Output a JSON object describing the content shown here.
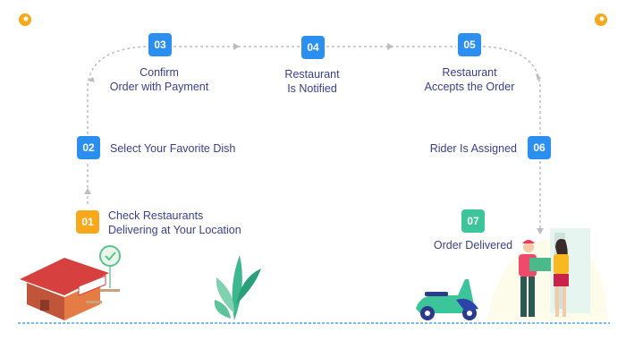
{
  "colors": {
    "step_badge": "#2b8ff0",
    "start_badge": "#f7a81b",
    "end_badge": "#3cc49a",
    "text": "#3a3f8f",
    "path": "#bdbdbd",
    "ground": "#4aa3f0"
  },
  "steps": [
    {
      "number": "01",
      "line1": "Check Restaurants",
      "line2": "Delivering at Your Location"
    },
    {
      "number": "02",
      "line1": "Select Your Favorite Dish"
    },
    {
      "number": "03",
      "line1": "Confirm",
      "line2": "Order with Payment"
    },
    {
      "number": "04",
      "line1": "Restaurant",
      "line2": "Is Notified"
    },
    {
      "number": "05",
      "line1": "Restaurant",
      "line2": "Accepts the Order"
    },
    {
      "number": "06",
      "line1": "Rider Is Assigned"
    },
    {
      "number": "07",
      "line1": "Order Delivered"
    }
  ],
  "icons": [
    "location-pin-icon",
    "restaurant-illustration",
    "checkmark-badge-icon",
    "plant-illustration",
    "scooter-illustration",
    "delivery-handover-illustration"
  ]
}
